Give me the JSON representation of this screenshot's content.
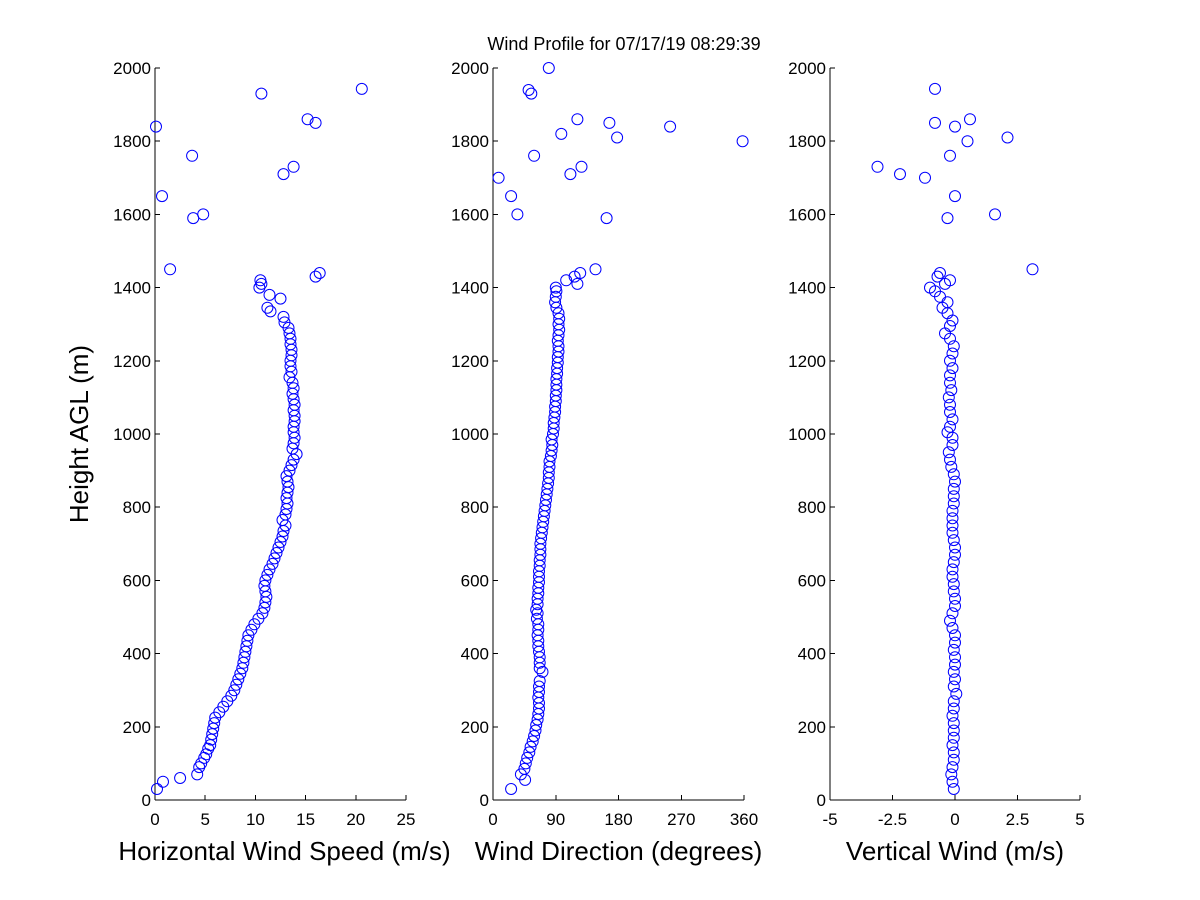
{
  "figure": {
    "title": "Wind Profile for  07/17/19 08:29:39",
    "ylabel": "Height AGL (m)"
  },
  "chart_data": [
    {
      "type": "scatter",
      "id": "speed",
      "xlabel": "Horizontal Wind Speed (m/s)",
      "ylabel": "Height AGL (m)",
      "xlim": [
        0,
        25
      ],
      "ylim": [
        0,
        2000
      ],
      "xticks": [
        "0",
        "5",
        "10",
        "15",
        "20",
        "25"
      ],
      "xtick_values": [
        0,
        5,
        10,
        15,
        20,
        25
      ],
      "yticks": [
        "0",
        "200",
        "400",
        "600",
        "800",
        "1000",
        "1200",
        "1400",
        "1600",
        "1800",
        "2000"
      ],
      "ytick_values": [
        0,
        200,
        400,
        600,
        800,
        1000,
        1200,
        1400,
        1600,
        1800,
        2000
      ],
      "marker": "circle-open",
      "color": "#0000ff",
      "points": [
        [
          0.2,
          30
        ],
        [
          0.8,
          50
        ],
        [
          2.5,
          60
        ],
        [
          4.2,
          70
        ],
        [
          4.4,
          90
        ],
        [
          4.6,
          100
        ],
        [
          4.9,
          115
        ],
        [
          5.1,
          125
        ],
        [
          5.3,
          140
        ],
        [
          5.5,
          150
        ],
        [
          5.6,
          165
        ],
        [
          5.7,
          180
        ],
        [
          5.8,
          195
        ],
        [
          5.9,
          210
        ],
        [
          6.0,
          225
        ],
        [
          6.4,
          240
        ],
        [
          6.8,
          255
        ],
        [
          7.2,
          270
        ],
        [
          7.6,
          285
        ],
        [
          7.9,
          300
        ],
        [
          8.1,
          315
        ],
        [
          8.3,
          330
        ],
        [
          8.5,
          345
        ],
        [
          8.7,
          360
        ],
        [
          8.8,
          375
        ],
        [
          8.9,
          390
        ],
        [
          9.0,
          405
        ],
        [
          9.1,
          420
        ],
        [
          9.2,
          435
        ],
        [
          9.3,
          450
        ],
        [
          9.6,
          465
        ],
        [
          9.9,
          480
        ],
        [
          10.3,
          495
        ],
        [
          10.7,
          510
        ],
        [
          10.9,
          525
        ],
        [
          11.0,
          540
        ],
        [
          11.1,
          555
        ],
        [
          11.0,
          570
        ],
        [
          10.9,
          585
        ],
        [
          11.0,
          600
        ],
        [
          11.2,
          615
        ],
        [
          11.4,
          630
        ],
        [
          11.7,
          645
        ],
        [
          11.9,
          660
        ],
        [
          12.1,
          675
        ],
        [
          12.3,
          690
        ],
        [
          12.5,
          705
        ],
        [
          12.7,
          720
        ],
        [
          12.8,
          735
        ],
        [
          13.0,
          750
        ],
        [
          12.7,
          765
        ],
        [
          13.0,
          780
        ],
        [
          13.1,
          795
        ],
        [
          13.2,
          810
        ],
        [
          13.1,
          825
        ],
        [
          13.2,
          840
        ],
        [
          13.3,
          855
        ],
        [
          13.2,
          870
        ],
        [
          13.1,
          885
        ],
        [
          13.4,
          900
        ],
        [
          13.6,
          915
        ],
        [
          13.8,
          930
        ],
        [
          14.1,
          945
        ],
        [
          13.7,
          960
        ],
        [
          13.8,
          975
        ],
        [
          13.9,
          990
        ],
        [
          13.8,
          1005
        ],
        [
          13.8,
          1020
        ],
        [
          13.9,
          1035
        ],
        [
          13.9,
          1050
        ],
        [
          13.8,
          1065
        ],
        [
          13.9,
          1080
        ],
        [
          13.8,
          1095
        ],
        [
          13.7,
          1110
        ],
        [
          13.8,
          1125
        ],
        [
          13.7,
          1140
        ],
        [
          13.4,
          1155
        ],
        [
          13.6,
          1170
        ],
        [
          13.5,
          1185
        ],
        [
          13.5,
          1200
        ],
        [
          13.6,
          1215
        ],
        [
          13.6,
          1230
        ],
        [
          13.5,
          1245
        ],
        [
          13.5,
          1260
        ],
        [
          13.4,
          1275
        ],
        [
          13.3,
          1290
        ],
        [
          12.9,
          1305
        ],
        [
          12.8,
          1320
        ],
        [
          11.5,
          1335
        ],
        [
          11.2,
          1345
        ],
        [
          12.5,
          1370
        ],
        [
          11.4,
          1380
        ],
        [
          10.4,
          1400
        ],
        [
          10.6,
          1410
        ],
        [
          10.5,
          1420
        ],
        [
          16.4,
          1440
        ],
        [
          16.0,
          1430
        ],
        [
          1.5,
          1450
        ],
        [
          3.8,
          1590
        ],
        [
          4.8,
          1600
        ],
        [
          0.7,
          1650
        ],
        [
          12.8,
          1710
        ],
        [
          13.8,
          1730
        ],
        [
          3.7,
          1760
        ],
        [
          0.1,
          1840
        ],
        [
          16.0,
          1850
        ],
        [
          15.2,
          1860
        ],
        [
          10.6,
          1930
        ],
        [
          20.6,
          1943
        ]
      ]
    },
    {
      "type": "scatter",
      "id": "direction",
      "xlabel": "Wind Direction (degrees)",
      "xlim": [
        0,
        360
      ],
      "ylim": [
        0,
        2000
      ],
      "xticks": [
        "0",
        "90",
        "180",
        "270",
        "360"
      ],
      "xtick_values": [
        0,
        90,
        180,
        270,
        360
      ],
      "yticks": [
        "0",
        "200",
        "400",
        "600",
        "800",
        "1000",
        "1200",
        "1400",
        "1600",
        "1800",
        "2000"
      ],
      "ytick_values": [
        0,
        200,
        400,
        600,
        800,
        1000,
        1200,
        1400,
        1600,
        1800,
        2000
      ],
      "marker": "circle-open",
      "color": "#0000ff",
      "points": [
        [
          26,
          30
        ],
        [
          46,
          55
        ],
        [
          40,
          70
        ],
        [
          45,
          85
        ],
        [
          47,
          100
        ],
        [
          49,
          115
        ],
        [
          52,
          130
        ],
        [
          54,
          145
        ],
        [
          57,
          160
        ],
        [
          59,
          175
        ],
        [
          61,
          190
        ],
        [
          62,
          205
        ],
        [
          64,
          220
        ],
        [
          65,
          235
        ],
        [
          66,
          250
        ],
        [
          66,
          265
        ],
        [
          65,
          280
        ],
        [
          66,
          295
        ],
        [
          66,
          310
        ],
        [
          67,
          325
        ],
        [
          71,
          350
        ],
        [
          67,
          360
        ],
        [
          67,
          375
        ],
        [
          67,
          390
        ],
        [
          66,
          405
        ],
        [
          65,
          420
        ],
        [
          65,
          435
        ],
        [
          64,
          450
        ],
        [
          65,
          465
        ],
        [
          65,
          480
        ],
        [
          63,
          495
        ],
        [
          64,
          510
        ],
        [
          62,
          520
        ],
        [
          64,
          535
        ],
        [
          64,
          550
        ],
        [
          65,
          565
        ],
        [
          65,
          580
        ],
        [
          66,
          595
        ],
        [
          66,
          610
        ],
        [
          66,
          625
        ],
        [
          67,
          640
        ],
        [
          67,
          655
        ],
        [
          68,
          670
        ],
        [
          68,
          685
        ],
        [
          68,
          700
        ],
        [
          69,
          715
        ],
        [
          70,
          730
        ],
        [
          71,
          745
        ],
        [
          72,
          760
        ],
        [
          73,
          775
        ],
        [
          74,
          790
        ],
        [
          75,
          805
        ],
        [
          76,
          820
        ],
        [
          77,
          835
        ],
        [
          78,
          850
        ],
        [
          79,
          865
        ],
        [
          80,
          880
        ],
        [
          80,
          895
        ],
        [
          81,
          910
        ],
        [
          81,
          925
        ],
        [
          83,
          940
        ],
        [
          84,
          955
        ],
        [
          85,
          970
        ],
        [
          84,
          985
        ],
        [
          86,
          1000
        ],
        [
          87,
          1015
        ],
        [
          87,
          1030
        ],
        [
          88,
          1045
        ],
        [
          89,
          1060
        ],
        [
          89,
          1075
        ],
        [
          90,
          1090
        ],
        [
          90,
          1105
        ],
        [
          91,
          1120
        ],
        [
          91,
          1135
        ],
        [
          91,
          1150
        ],
        [
          92,
          1165
        ],
        [
          92,
          1180
        ],
        [
          93,
          1195
        ],
        [
          93,
          1210
        ],
        [
          94,
          1225
        ],
        [
          94,
          1240
        ],
        [
          93,
          1255
        ],
        [
          94,
          1270
        ],
        [
          95,
          1285
        ],
        [
          94,
          1300
        ],
        [
          95,
          1315
        ],
        [
          94,
          1330
        ],
        [
          91,
          1345
        ],
        [
          89,
          1360
        ],
        [
          90,
          1375
        ],
        [
          91,
          1390
        ],
        [
          90,
          1400
        ],
        [
          105,
          1420
        ],
        [
          117,
          1430
        ],
        [
          125,
          1440
        ],
        [
          121,
          1410
        ],
        [
          147,
          1450
        ],
        [
          8,
          1700
        ],
        [
          26,
          1650
        ],
        [
          35,
          1600
        ],
        [
          163,
          1590
        ],
        [
          111,
          1710
        ],
        [
          127,
          1730
        ],
        [
          59,
          1760
        ],
        [
          98,
          1820
        ],
        [
          178,
          1810
        ],
        [
          121,
          1860
        ],
        [
          167,
          1850
        ],
        [
          254,
          1840
        ],
        [
          358,
          1800
        ],
        [
          51,
          1940
        ],
        [
          55,
          1930
        ],
        [
          80,
          2000
        ]
      ]
    },
    {
      "type": "scatter",
      "id": "vertical",
      "xlabel": "Vertical Wind (m/s)",
      "xlim": [
        -5,
        5
      ],
      "ylim": [
        0,
        2000
      ],
      "xticks": [
        "-5",
        "-2.5",
        "0",
        "2.5",
        "5"
      ],
      "xtick_values": [
        -5,
        -2.5,
        0,
        2.5,
        5
      ],
      "yticks": [
        "0",
        "200",
        "400",
        "600",
        "800",
        "1000",
        "1200",
        "1400",
        "1600",
        "1800",
        "2000"
      ],
      "ytick_values": [
        0,
        200,
        400,
        600,
        800,
        1000,
        1200,
        1400,
        1600,
        1800,
        2000
      ],
      "marker": "circle-open",
      "color": "#0000ff",
      "points": [
        [
          -0.05,
          30
        ],
        [
          -0.1,
          50
        ],
        [
          -0.15,
          70
        ],
        [
          -0.1,
          90
        ],
        [
          -0.05,
          110
        ],
        [
          -0.05,
          130
        ],
        [
          -0.1,
          150
        ],
        [
          -0.05,
          170
        ],
        [
          -0.05,
          190
        ],
        [
          -0.05,
          210
        ],
        [
          -0.1,
          230
        ],
        [
          -0.05,
          250
        ],
        [
          -0.05,
          270
        ],
        [
          0.05,
          290
        ],
        [
          -0.05,
          310
        ],
        [
          0.0,
          330
        ],
        [
          -0.05,
          350
        ],
        [
          0.0,
          370
        ],
        [
          0.0,
          390
        ],
        [
          -0.05,
          410
        ],
        [
          0.0,
          430
        ],
        [
          0.0,
          450
        ],
        [
          -0.1,
          470
        ],
        [
          -0.2,
          490
        ],
        [
          -0.1,
          510
        ],
        [
          0.0,
          530
        ],
        [
          0.0,
          550
        ],
        [
          -0.05,
          570
        ],
        [
          -0.05,
          590
        ],
        [
          -0.1,
          610
        ],
        [
          -0.1,
          630
        ],
        [
          -0.05,
          650
        ],
        [
          0.0,
          670
        ],
        [
          0.0,
          690
        ],
        [
          -0.05,
          710
        ],
        [
          -0.1,
          730
        ],
        [
          -0.1,
          750
        ],
        [
          -0.1,
          770
        ],
        [
          -0.1,
          790
        ],
        [
          -0.05,
          810
        ],
        [
          -0.05,
          830
        ],
        [
          -0.05,
          850
        ],
        [
          0.0,
          870
        ],
        [
          -0.05,
          890
        ],
        [
          -0.15,
          910
        ],
        [
          -0.2,
          930
        ],
        [
          -0.25,
          950
        ],
        [
          -0.1,
          970
        ],
        [
          -0.1,
          990
        ],
        [
          -0.3,
          1005
        ],
        [
          -0.2,
          1020
        ],
        [
          -0.1,
          1040
        ],
        [
          -0.2,
          1060
        ],
        [
          -0.2,
          1080
        ],
        [
          -0.25,
          1100
        ],
        [
          -0.15,
          1120
        ],
        [
          -0.2,
          1140
        ],
        [
          -0.2,
          1160
        ],
        [
          -0.1,
          1180
        ],
        [
          -0.2,
          1200
        ],
        [
          -0.1,
          1220
        ],
        [
          -0.05,
          1240
        ],
        [
          -0.2,
          1260
        ],
        [
          -0.4,
          1275
        ],
        [
          -0.2,
          1295
        ],
        [
          -0.1,
          1310
        ],
        [
          -0.3,
          1330
        ],
        [
          -0.5,
          1345
        ],
        [
          -0.3,
          1360
        ],
        [
          -0.6,
          1375
        ],
        [
          -0.8,
          1390
        ],
        [
          -1.0,
          1400
        ],
        [
          -0.4,
          1410
        ],
        [
          -0.7,
          1430
        ],
        [
          -0.6,
          1440
        ],
        [
          -0.2,
          1420
        ],
        [
          3.1,
          1450
        ],
        [
          -3.1,
          1730
        ],
        [
          -2.2,
          1710
        ],
        [
          -1.2,
          1700
        ],
        [
          0.0,
          1650
        ],
        [
          -0.3,
          1590
        ],
        [
          1.6,
          1600
        ],
        [
          -0.2,
          1760
        ],
        [
          0.5,
          1800
        ],
        [
          2.1,
          1810
        ],
        [
          0.0,
          1840
        ],
        [
          -0.8,
          1850
        ],
        [
          0.6,
          1860
        ],
        [
          -0.8,
          1943
        ]
      ]
    }
  ]
}
